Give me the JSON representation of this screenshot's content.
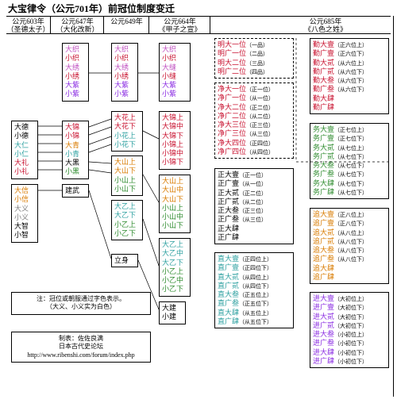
{
  "title": "大宝律令（公元701年）前冠位制度变迁",
  "colors": {
    "red": "#c8102e",
    "purple": "#8a2be2",
    "magenta": "#c04fc0",
    "green": "#2e8b2e",
    "teal": "#2da0a0",
    "orange": "#d97b00",
    "black": "#000000",
    "gray": "#808080"
  },
  "heads": {
    "c1": "公元603年\n（圣德太子）",
    "c2": "公元647年\n（大化改新）",
    "c3": "公元649年",
    "c4": "公元664年\n《甲子之宣》",
    "c5": "公元685年\n《八色之姓》"
  },
  "col1": {
    "a": [
      {
        "t": "大德",
        "c": "black"
      },
      {
        "t": "小德",
        "c": "black"
      },
      {
        "t": "大仁",
        "c": "teal"
      },
      {
        "t": "小仁",
        "c": "teal"
      },
      {
        "t": "大礼",
        "c": "red"
      },
      {
        "t": "小礼",
        "c": "red"
      }
    ],
    "b": [
      {
        "t": "大信",
        "c": "orange"
      },
      {
        "t": "小信",
        "c": "orange"
      },
      {
        "t": "大义",
        "c": "gray"
      },
      {
        "t": "小义",
        "c": "gray"
      },
      {
        "t": "大智",
        "c": "black"
      },
      {
        "t": "小智",
        "c": "black"
      }
    ]
  },
  "col2": {
    "a": [
      {
        "t": "大织",
        "c": "magenta"
      },
      {
        "t": "小织",
        "c": "red"
      },
      {
        "t": "大绣",
        "c": "magenta"
      },
      {
        "t": "小绣",
        "c": "red"
      },
      {
        "t": "大紫",
        "c": "purple"
      },
      {
        "t": "小紫",
        "c": "purple"
      }
    ],
    "b": [
      {
        "t": "大锦",
        "c": "red"
      },
      {
        "t": "小锦",
        "c": "red"
      },
      {
        "t": "大青",
        "c": "orange"
      },
      {
        "t": "小青",
        "c": "teal"
      },
      {
        "t": "大黑",
        "c": "black"
      },
      {
        "t": "小黑",
        "c": "green"
      }
    ],
    "c": "建武"
  },
  "col3": {
    "a": [
      {
        "t": "大织",
        "c": "magenta"
      },
      {
        "t": "小织",
        "c": "red"
      },
      {
        "t": "大绣",
        "c": "magenta"
      },
      {
        "t": "小绣",
        "c": "red"
      },
      {
        "t": "大紫",
        "c": "purple"
      },
      {
        "t": "小紫",
        "c": "purple"
      }
    ],
    "b": [
      {
        "t": "大花上",
        "c": "red"
      },
      {
        "t": "大花下",
        "c": "red"
      },
      {
        "t": "小花上",
        "c": "teal"
      },
      {
        "t": "小花下",
        "c": "teal"
      }
    ],
    "c": [
      {
        "t": "大山上",
        "c": "orange"
      },
      {
        "t": "大山下",
        "c": "orange"
      },
      {
        "t": "小山上",
        "c": "green"
      },
      {
        "t": "小山下",
        "c": "green"
      }
    ],
    "d": [
      {
        "t": "大乙上",
        "c": "teal"
      },
      {
        "t": "大乙下",
        "c": "teal"
      },
      {
        "t": "小乙上",
        "c": "green"
      },
      {
        "t": "小乙下",
        "c": "green"
      }
    ],
    "e": "立身"
  },
  "col4": {
    "a": [
      {
        "t": "大织",
        "c": "magenta"
      },
      {
        "t": "小织",
        "c": "red"
      },
      {
        "t": "大缝",
        "c": "magenta"
      },
      {
        "t": "小缝",
        "c": "red"
      },
      {
        "t": "大紫",
        "c": "purple"
      },
      {
        "t": "小紫",
        "c": "purple"
      }
    ],
    "b": [
      {
        "t": "大锦上",
        "c": "red"
      },
      {
        "t": "大锦中",
        "c": "red"
      },
      {
        "t": "大锦下",
        "c": "red"
      },
      {
        "t": "小锦上",
        "c": "red"
      },
      {
        "t": "小锦中",
        "c": "red"
      },
      {
        "t": "小锦下",
        "c": "red"
      }
    ],
    "c": [
      {
        "t": "大山上",
        "c": "orange"
      },
      {
        "t": "大山中",
        "c": "orange"
      },
      {
        "t": "大山下",
        "c": "orange"
      },
      {
        "t": "小山上",
        "c": "green"
      },
      {
        "t": "小山中",
        "c": "green"
      },
      {
        "t": "小山下",
        "c": "green"
      }
    ],
    "d": [
      {
        "t": "大乙上",
        "c": "teal"
      },
      {
        "t": "大乙中",
        "c": "teal"
      },
      {
        "t": "大乙下",
        "c": "teal"
      },
      {
        "t": "小乙上",
        "c": "green"
      },
      {
        "t": "小乙中",
        "c": "green"
      },
      {
        "t": "小乙下",
        "c": "green"
      }
    ],
    "e": [
      {
        "t": "大建",
        "c": "black"
      },
      {
        "t": "小建",
        "c": "black"
      }
    ]
  },
  "col5": {
    "a": [
      {
        "t": "明大一位",
        "s": "（一品）",
        "c": "red"
      },
      {
        "t": "明广一位",
        "s": "（二品）",
        "c": "red"
      },
      {
        "t": "明大二位",
        "s": "（三品）",
        "c": "red"
      },
      {
        "t": "明广二位",
        "s": "（四品）",
        "c": "red"
      }
    ],
    "b": [
      {
        "t": "净大一位",
        "s": "（正一位）",
        "c": "red"
      },
      {
        "t": "净广一位",
        "s": "（从一位）",
        "c": "red"
      },
      {
        "t": "净大二位",
        "s": "（正二位）",
        "c": "red"
      },
      {
        "t": "净广二位",
        "s": "（从二位）",
        "c": "red"
      },
      {
        "t": "净大三位",
        "s": "（正三位）",
        "c": "red"
      },
      {
        "t": "净广三位",
        "s": "（从三位）",
        "c": "red"
      },
      {
        "t": "净大四位",
        "s": "（正四位）",
        "c": "red"
      },
      {
        "t": "净广四位",
        "s": "（从四位）",
        "c": "red"
      }
    ],
    "c": [
      {
        "t": "正大壹",
        "s": "（正一位）",
        "c": "black"
      },
      {
        "t": "正广壹",
        "s": "（从一位）",
        "c": "black"
      },
      {
        "t": "正大贰",
        "s": "（正二位）",
        "c": "black"
      },
      {
        "t": "正广贰",
        "s": "（从二位）",
        "c": "black"
      },
      {
        "t": "正大叁",
        "s": "（正三位）",
        "c": "black"
      },
      {
        "t": "正广叁",
        "s": "（从三位）",
        "c": "black"
      },
      {
        "t": "正大肆",
        "s": "",
        "c": "black"
      },
      {
        "t": "正广肆",
        "s": "",
        "c": "black"
      }
    ],
    "d": [
      {
        "t": "直大壹",
        "s": "（正四位上）",
        "c": "teal"
      },
      {
        "t": "直广壹",
        "s": "（正四位下）",
        "c": "teal"
      },
      {
        "t": "直大贰",
        "s": "（从四位上）",
        "c": "teal"
      },
      {
        "t": "直广贰",
        "s": "（从四位下）",
        "c": "teal"
      },
      {
        "t": "直大叁",
        "s": "（正五位上）",
        "c": "teal"
      },
      {
        "t": "直广叁",
        "s": "（正五位下）",
        "c": "teal"
      },
      {
        "t": "直大肆",
        "s": "（从五位上）",
        "c": "teal"
      },
      {
        "t": "直广肆",
        "s": "（从五位下）",
        "c": "teal"
      }
    ],
    "e": [
      {
        "t": "勤大壹",
        "s": "（正六位上）",
        "c": "red"
      },
      {
        "t": "勤广壹",
        "s": "（正六位下）",
        "c": "red"
      },
      {
        "t": "勤大贰",
        "s": "（从六位上）",
        "c": "red"
      },
      {
        "t": "勤广贰",
        "s": "（从六位下）",
        "c": "red"
      },
      {
        "t": "勤大叁",
        "s": "（从六位下）",
        "c": "red"
      },
      {
        "t": "勤广叁",
        "s": "（从六位下）",
        "c": "red"
      },
      {
        "t": "勤大肆",
        "s": "",
        "c": "red"
      },
      {
        "t": "勤广肆",
        "s": "",
        "c": "red"
      }
    ],
    "f": [
      {
        "t": "务大壹",
        "s": "（正七位上）",
        "c": "green"
      },
      {
        "t": "务广壹",
        "s": "（正七位下）",
        "c": "green"
      },
      {
        "t": "务大贰",
        "s": "（从七位上）",
        "c": "green"
      },
      {
        "t": "务广贰",
        "s": "（从七位下）",
        "c": "green"
      },
      {
        "t": "务大叁",
        "s": "（从七位下）",
        "c": "green"
      },
      {
        "t": "务广叁",
        "s": "（从七位下）",
        "c": "green"
      },
      {
        "t": "务大肆",
        "s": "（从七位下）",
        "c": "green"
      },
      {
        "t": "务广肆",
        "s": "（从七位下）",
        "c": "green"
      }
    ],
    "g": [
      {
        "t": "追大壹",
        "s": "（正八位上）",
        "c": "orange"
      },
      {
        "t": "追广壹",
        "s": "（正八位下）",
        "c": "orange"
      },
      {
        "t": "追大贰",
        "s": "（从八位上）",
        "c": "orange"
      },
      {
        "t": "追广贰",
        "s": "（从八位下）",
        "c": "orange"
      },
      {
        "t": "追大叁",
        "s": "（从八位下）",
        "c": "orange"
      },
      {
        "t": "追广叁",
        "s": "（从八位下）",
        "c": "orange"
      },
      {
        "t": "追大肆",
        "s": "",
        "c": "orange"
      },
      {
        "t": "追广肆",
        "s": "",
        "c": "orange"
      }
    ],
    "h": [
      {
        "t": "进大壹",
        "s": "（大初位上）",
        "c": "purple"
      },
      {
        "t": "进广壹",
        "s": "（大初位下）",
        "c": "purple"
      },
      {
        "t": "进大贰",
        "s": "（大初位下）",
        "c": "purple"
      },
      {
        "t": "进广贰",
        "s": "（大初位下）",
        "c": "purple"
      },
      {
        "t": "进大叁",
        "s": "（小初位上）",
        "c": "purple"
      },
      {
        "t": "进广叁",
        "s": "（小初位下）",
        "c": "purple"
      },
      {
        "t": "进大肆",
        "s": "（小初位下）",
        "c": "purple"
      },
      {
        "t": "进广肆",
        "s": "（小初位下）",
        "c": "purple"
      }
    ]
  },
  "note": "注：冠位或朝服通过字色表示。\n（大义、小义实为白色）",
  "credit": "制表：佐佐良满\n日本古代史论坛\nhttp://www.ribenshi.com/forum/index.php"
}
